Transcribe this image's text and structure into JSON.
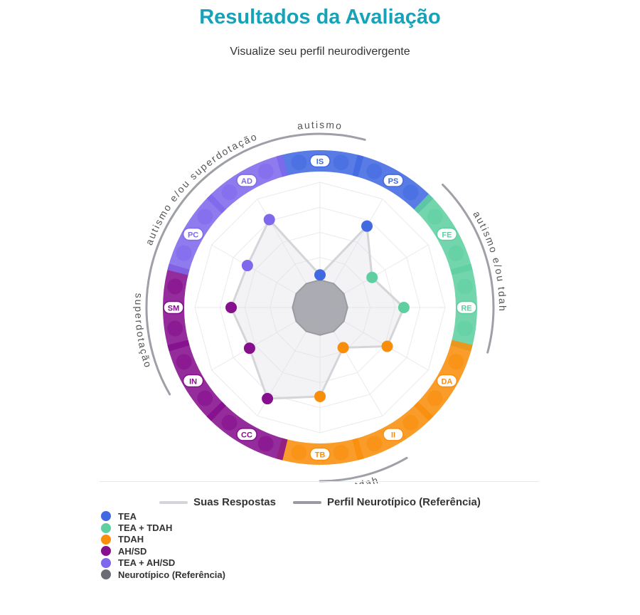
{
  "header": {
    "title": "Resultados da Avaliação",
    "subtitle": "Visualize seu perfil neurodivergente"
  },
  "colors": {
    "TEA": "#4169e1",
    "TEA + TDAH": "#5ecfa0",
    "TDAH": "#f98e0b",
    "AH/SD": "#850f8d",
    "TEA + AH/SD": "#7f68ec",
    "Neurotípico (Referência)": "#6b6b75",
    "response_line": "#d3d5d9",
    "reference_line": "#9a9aa2"
  },
  "chart_data": {
    "type": "radar",
    "title": "Resultados da Avaliação",
    "subtitle": "Visualize seu perfil neurodivergente",
    "axes": [
      "IS",
      "PS",
      "FE",
      "RE",
      "DA",
      "II",
      "TB",
      "CC",
      "IN",
      "SM",
      "PC",
      "AD"
    ],
    "axis_groups": [
      "TEA",
      "TEA",
      "TEA + TDAH",
      "TEA + TDAH",
      "TDAH",
      "TDAH",
      "TDAH",
      "AH/SD",
      "AH/SD",
      "AH/SD",
      "TEA + AH/SD",
      "TEA + AH/SD"
    ],
    "outer_labels": [
      {
        "text": "autismo",
        "from": -15,
        "to": 15
      },
      {
        "text": "autismo e/ou tdah",
        "from": 45,
        "to": 105
      },
      {
        "text": "tdah",
        "from": 150,
        "to": 180
      },
      {
        "text": "superdotação",
        "from": 240,
        "to": 285
      },
      {
        "text": "autismo e/ou superdotação",
        "from": 285,
        "to": 345
      }
    ],
    "range": [
      0,
      10
    ],
    "series": [
      {
        "name": "Suas Respostas",
        "values": [
          2.6,
          7.5,
          4.8,
          6.7,
          6.2,
          3.7,
          7.1,
          8.4,
          6.5,
          7.1,
          6.7,
          8.1
        ]
      },
      {
        "name": "Perfil Neurotípico (Referência)",
        "values": [
          2.2,
          2.2,
          2.2,
          2.2,
          2.2,
          2.2,
          2.2,
          2.2,
          2.2,
          2.2,
          2.2,
          2.2
        ]
      }
    ],
    "grid": true,
    "legend": [
      "Suas Respostas",
      "Perfil Neurotípico (Referência)"
    ]
  },
  "legend_lines": [
    {
      "label": "Suas Respostas",
      "color": "#d3d5d9"
    },
    {
      "label": "Perfil Neurotípico (Referência)",
      "color": "#9a9aa2"
    }
  ],
  "legend_dots": [
    {
      "label": "TEA"
    },
    {
      "label": "TEA + TDAH"
    },
    {
      "label": "TDAH"
    },
    {
      "label": "AH/SD"
    },
    {
      "label": "TEA + AH/SD"
    },
    {
      "label": "Neurotípico (Referência)"
    }
  ]
}
